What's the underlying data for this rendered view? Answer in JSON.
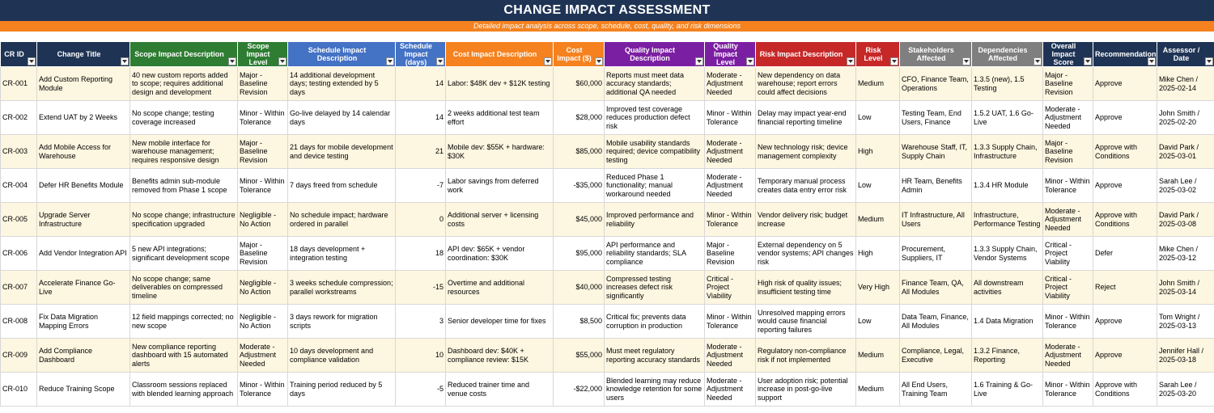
{
  "title": "CHANGE IMPACT ASSESSMENT",
  "subtitle": "Detailed impact analysis across scope, schedule, cost, quality, and risk dimensions",
  "colors": {
    "title_bg": "#1f3455",
    "subtitle_bg": "#f5821f",
    "navy": "#1f3455",
    "scope_green": "#2e7d32",
    "schedule_blue": "#4472c4",
    "cost_orange": "#f5821f",
    "quality_purple": "#7b1fa2",
    "risk_red": "#c62828",
    "stakeholder_gray": "#7f7f7f",
    "row_alt": "#fdf6e0"
  },
  "columns": [
    {
      "label": "CR ID",
      "color": "#1f3455"
    },
    {
      "label": "Change Title",
      "color": "#1f3455"
    },
    {
      "label": "Scope Impact Description",
      "color": "#2e7d32"
    },
    {
      "label": "Scope Impact Level",
      "color": "#2e7d32"
    },
    {
      "label": "Schedule Impact Description",
      "color": "#4472c4"
    },
    {
      "label": "Schedule Impact (days)",
      "color": "#4472c4"
    },
    {
      "label": "Cost Impact Description",
      "color": "#f5821f"
    },
    {
      "label": "Cost Impact ($)",
      "color": "#f5821f"
    },
    {
      "label": "Quality Impact Description",
      "color": "#7b1fa2"
    },
    {
      "label": "Quality Impact Level",
      "color": "#7b1fa2"
    },
    {
      "label": "Risk Impact Description",
      "color": "#c62828"
    },
    {
      "label": "Risk Level",
      "color": "#c62828"
    },
    {
      "label": "Stakeholders Affected",
      "color": "#7f7f7f"
    },
    {
      "label": "Dependencies Affected",
      "color": "#7f7f7f"
    },
    {
      "label": "Overall Impact Score",
      "color": "#1f3455"
    },
    {
      "label": "Recommendation",
      "color": "#1f3455"
    },
    {
      "label": "Assessor / Date",
      "color": "#1f3455"
    }
  ],
  "rows": [
    [
      "CR-001",
      "Add Custom Reporting Module",
      "40 new custom reports added to scope; requires additional design and development",
      "Major - Baseline Revision",
      "14 additional development days; testing extended by 5 days",
      "14",
      "Labor: $48K dev + $12K testing",
      "$60,000",
      "Reports must meet data accuracy standards; additional QA needed",
      "Moderate - Adjustment Needed",
      "New dependency on data warehouse; report errors could affect decisions",
      "Medium",
      "CFO, Finance Team, Operations",
      "1.3.5 (new), 1.5 Testing",
      "Major - Baseline Revision",
      "Approve",
      "Mike Chen / 2025-02-14"
    ],
    [
      "CR-002",
      "Extend UAT by 2 Weeks",
      "No scope change; testing coverage increased",
      "Minor - Within Tolerance",
      "Go-live delayed by 14 calendar days",
      "14",
      "2 weeks additional test team effort",
      "$28,000",
      "Improved test coverage reduces production defect risk",
      "Minor - Within Tolerance",
      "Delay may impact year-end financial reporting timeline",
      "Low",
      "Testing Team, End Users, Finance",
      "1.5.2 UAT, 1.6 Go-Live",
      "Moderate - Adjustment Needed",
      "Approve",
      "John Smith / 2025-02-20"
    ],
    [
      "CR-003",
      "Add Mobile Access for Warehouse",
      "New mobile interface for warehouse management; requires responsive design",
      "Major - Baseline Revision",
      "21 days for mobile development and device testing",
      "21",
      "Mobile dev: $55K + hardware: $30K",
      "$85,000",
      "Mobile usability standards required; device compatibility testing",
      "Moderate - Adjustment Needed",
      "New technology risk; device management complexity",
      "High",
      "Warehouse Staff, IT, Supply Chain",
      "1.3.3 Supply Chain, Infrastructure",
      "Major - Baseline Revision",
      "Approve with Conditions",
      "David Park / 2025-03-01"
    ],
    [
      "CR-004",
      "Defer HR Benefits Module",
      "Benefits admin sub-module removed from Phase 1 scope",
      "Minor - Within Tolerance",
      "7 days freed from schedule",
      "-7",
      "Labor savings from deferred work",
      "-$35,000",
      "Reduced Phase 1 functionality; manual workaround needed",
      "Moderate - Adjustment Needed",
      "Temporary manual process creates data entry error risk",
      "Low",
      "HR Team, Benefits Admin",
      "1.3.4 HR Module",
      "Minor - Within Tolerance",
      "Approve",
      "Sarah Lee / 2025-03-02"
    ],
    [
      "CR-005",
      "Upgrade Server Infrastructure",
      "No scope change; infrastructure specification upgraded",
      "Negligible - No Action",
      "No schedule impact; hardware ordered in parallel",
      "0",
      "Additional server + licensing costs",
      "$45,000",
      "Improved performance and reliability",
      "Minor - Within Tolerance",
      "Vendor delivery risk; budget increase",
      "Medium",
      "IT Infrastructure, All Users",
      "Infrastructure, Performance Testing",
      "Moderate - Adjustment Needed",
      "Approve with Conditions",
      "David Park / 2025-03-08"
    ],
    [
      "CR-006",
      "Add Vendor Integration API",
      "5 new API integrations; significant development scope",
      "Major - Baseline Revision",
      "18 days development + integration testing",
      "18",
      "API dev: $65K + vendor coordination: $30K",
      "$95,000",
      "API performance and reliability standards; SLA compliance",
      "Major - Baseline Revision",
      "External dependency on 5 vendor systems; API changes risk",
      "High",
      "Procurement, Suppliers, IT",
      "1.3.3 Supply Chain, Vendor Systems",
      "Critical - Project Viability",
      "Defer",
      "Mike Chen / 2025-03-12"
    ],
    [
      "CR-007",
      "Accelerate Finance Go-Live",
      "No scope change; same deliverables on compressed timeline",
      "Negligible - No Action",
      "3 weeks schedule compression; parallel workstreams",
      "-15",
      "Overtime and additional resources",
      "$40,000",
      "Compressed testing increases defect risk significantly",
      "Critical - Project Viability",
      "High risk of quality issues; insufficient testing time",
      "Very High",
      "Finance Team, QA, All Modules",
      "All downstream activities",
      "Critical - Project Viability",
      "Reject",
      "John Smith / 2025-03-14"
    ],
    [
      "CR-008",
      "Fix Data Migration Mapping Errors",
      "12 field mappings corrected; no new scope",
      "Negligible - No Action",
      "3 days rework for migration scripts",
      "3",
      "Senior developer time for fixes",
      "$8,500",
      "Critical fix; prevents data corruption in production",
      "Minor - Within Tolerance",
      "Unresolved mapping errors would cause financial reporting failures",
      "Low",
      "Data Team, Finance, All Modules",
      "1.4 Data Migration",
      "Minor - Within Tolerance",
      "Approve",
      "Tom Wright / 2025-03-13"
    ],
    [
      "CR-009",
      "Add Compliance Dashboard",
      "New compliance reporting dashboard with 15 automated alerts",
      "Moderate - Adjustment Needed",
      "10 days development and compliance validation",
      "10",
      "Dashboard dev: $40K + compliance review: $15K",
      "$55,000",
      "Must meet regulatory reporting accuracy standards",
      "Moderate - Adjustment Needed",
      "Regulatory non-compliance risk if not implemented",
      "Medium",
      "Compliance, Legal, Executive",
      "1.3.2 Finance, Reporting",
      "Moderate - Adjustment Needed",
      "Approve",
      "Jennifer Hall / 2025-03-18"
    ],
    [
      "CR-010",
      "Reduce Training Scope",
      "Classroom sessions replaced with blended learning approach",
      "Minor - Within Tolerance",
      "Training period reduced by 5 days",
      "-5",
      "Reduced trainer time and venue costs",
      "-$22,000",
      "Blended learning may reduce knowledge retention for some users",
      "Moderate - Adjustment Needed",
      "User adoption risk; potential increase in post-go-live support",
      "Medium",
      "All End Users, Training Team",
      "1.6 Training & Go-Live",
      "Minor - Within Tolerance",
      "Approve with Conditions",
      "Sarah Lee / 2025-03-20"
    ]
  ]
}
